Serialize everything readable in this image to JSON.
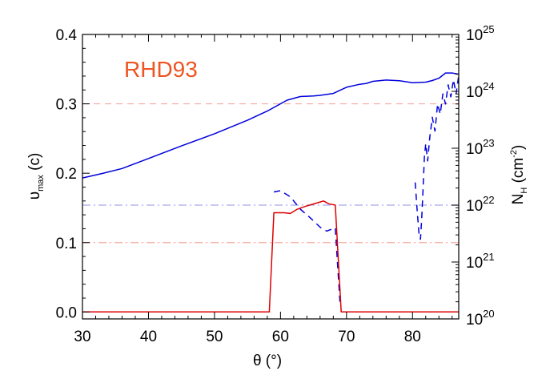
{
  "chart_data": {
    "type": "line",
    "annotation": {
      "text": "RHD93",
      "color": "#ee5522"
    },
    "xaxis": {
      "label": "θ (°)",
      "range": [
        30,
        87
      ],
      "ticks": [
        "30",
        "40",
        "50",
        "60",
        "70",
        "80"
      ]
    },
    "yaxis_left": {
      "label": {
        "main": "υ",
        "sub": "max",
        "rest": " (c)"
      },
      "range": [
        -0.01,
        0.4
      ],
      "ticks": [
        "0.0",
        "0.1",
        "0.2",
        "0.3",
        "0.4"
      ]
    },
    "yaxis_right": {
      "label": {
        "main": "N",
        "sub": "H",
        "rest": " (cm",
        "sup": "-2",
        "end": ")"
      },
      "scale": "log",
      "range": [
        1e+20,
        1e+25
      ],
      "ticks": [
        {
          "base": "10",
          "exp": "20"
        },
        {
          "base": "10",
          "exp": "21"
        },
        {
          "base": "10",
          "exp": "22"
        },
        {
          "base": "10",
          "exp": "23"
        },
        {
          "base": "10",
          "exp": "24"
        },
        {
          "base": "10",
          "exp": "25"
        }
      ]
    },
    "reference_lines": [
      {
        "axis": "left",
        "y": 0.3,
        "style": "dashed",
        "color": "#f4a8a0"
      },
      {
        "axis": "left",
        "y": 0.1,
        "style": "dashdot",
        "color": "#f4a8a0"
      },
      {
        "axis": "right",
        "y": 1e+22,
        "style": "dashdot",
        "color": "#a8a8f0"
      }
    ],
    "series": [
      {
        "axis": "right",
        "color": "#0000dd",
        "style": "solid",
        "x": [
          30,
          33,
          36,
          40,
          45,
          50,
          55,
          58,
          61,
          63,
          65,
          66,
          68,
          70,
          72,
          73,
          74,
          76,
          78,
          80,
          82,
          83,
          84,
          85,
          86,
          87
        ],
        "y": [
          3e+22,
          3.6e+22,
          4.4e+22,
          6.6e+22,
          1.1e+23,
          1.8e+23,
          3.1e+23,
          4.5e+23,
          7e+23,
          8.1e+23,
          8.3e+23,
          8.5e+23,
          9.2e+23,
          1.18e+24,
          1.33e+24,
          1.38e+24,
          1.5e+24,
          1.58e+24,
          1.54e+24,
          1.42e+24,
          1.45e+24,
          1.55e+24,
          1.7e+24,
          2.1e+24,
          2.1e+24,
          2e+24
        ]
      },
      {
        "axis": "right",
        "color": "#0000dd",
        "style": "dashed",
        "x": [
          59.0,
          60.0,
          61.5,
          63.0,
          64.5,
          66.0,
          67.0,
          68.3,
          69.0
        ],
        "y": [
          1.7e+22,
          1.8e+22,
          1.4e+22,
          8.5e+21,
          6e+21,
          4.1e+21,
          3.5e+21,
          4e+21,
          2e+20
        ]
      },
      {
        "axis": "right",
        "color": "#0000dd",
        "style": "dashed",
        "x": [
          80.4,
          80.7,
          81.0,
          81.2,
          81.4,
          81.6,
          81.8,
          82.0,
          82.3,
          82.6,
          83.0,
          83.4,
          83.8,
          84.2,
          84.6,
          85.0,
          85.4,
          85.8,
          86.2,
          86.6,
          87.0
        ],
        "y": [
          2.5e+22,
          8e+21,
          3e+21,
          2.5e+21,
          6e+21,
          2e+22,
          7e+22,
          1.2e+23,
          6e+22,
          1.5e+23,
          3.5e+23,
          2e+23,
          6e+23,
          4e+23,
          9e+23,
          6e+23,
          1.3e+24,
          8e+23,
          1.6e+24,
          9e+23,
          1.9e+24
        ]
      },
      {
        "axis": "left",
        "color": "#dd0000",
        "style": "solid",
        "x": [
          30,
          58.3,
          59.0,
          60.5,
          61.5,
          62.5,
          64.0,
          65.5,
          66.5,
          67.3,
          68.3,
          69.2,
          87
        ],
        "y": [
          0.0,
          0.0,
          0.143,
          0.143,
          0.142,
          0.148,
          0.153,
          0.157,
          0.16,
          0.156,
          0.154,
          0.0,
          0.0
        ]
      }
    ]
  }
}
